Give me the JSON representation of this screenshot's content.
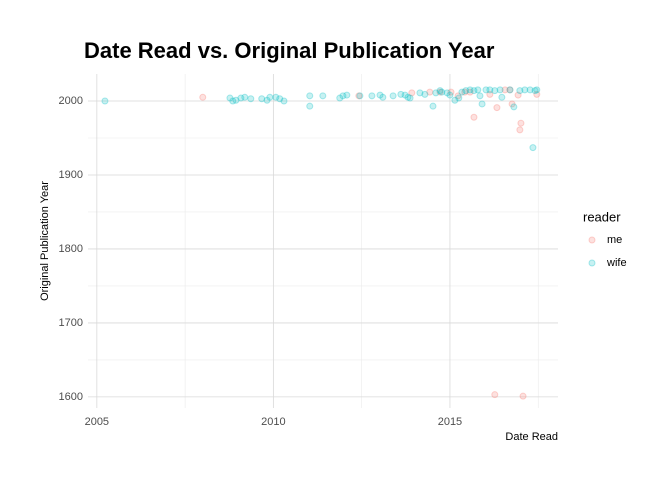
{
  "chart_data": {
    "type": "scatter",
    "title": "Date Read vs. Original Publication Year",
    "x_label": "Date Read",
    "y_label": "Original Publication Year",
    "legend_title": "reader",
    "legend_position": "right",
    "grid": true,
    "opacity": 0.22,
    "xlim": [
      2004.75,
      2018.06
    ],
    "ylim": [
      1585,
      2036.5
    ],
    "xticks": [
      2005,
      2010,
      2015
    ],
    "xminorticks": [
      2007.5,
      2012.5,
      2017.5
    ],
    "yticks": [
      1600,
      1700,
      1800,
      1900,
      2000
    ],
    "yminorticks": [
      1650,
      1750,
      1850,
      1950
    ],
    "series": [
      {
        "name": "me",
        "color": "#F8766D",
        "x": [
          2008.0,
          2012.42,
          2013.92,
          2014.43,
          2014.72,
          2015.03,
          2015.23,
          2015.42,
          2015.57,
          2015.68,
          2016.13,
          2016.33,
          2016.56,
          2016.76,
          2016.93,
          2016.98,
          2017.01,
          2017.46,
          2016.27,
          2017.07,
          2016.7
        ],
        "y": [
          2005,
          2007,
          2011,
          2012,
          2012,
          2012,
          2007,
          2012,
          2012,
          1978,
          2009,
          1991,
          2015,
          1996,
          2008,
          1961,
          1970,
          2009,
          1603,
          1601,
          2015
        ]
      },
      {
        "name": "wife",
        "color": "#00BFC4",
        "x": [
          2005.23,
          2008.77,
          2008.85,
          2008.94,
          2009.08,
          2009.19,
          2009.36,
          2009.67,
          2009.82,
          2009.9,
          2010.07,
          2010.18,
          2010.3,
          2011.03,
          2011.03,
          2011.4,
          2011.88,
          2011.97,
          2012.08,
          2012.45,
          2012.79,
          2013.02,
          2013.1,
          2013.39,
          2013.61,
          2013.73,
          2013.81,
          2013.87,
          2014.15,
          2014.29,
          2014.52,
          2014.6,
          2014.72,
          2014.77,
          2014.92,
          2015.0,
          2015.14,
          2015.25,
          2015.34,
          2015.45,
          2015.57,
          2015.68,
          2015.79,
          2015.85,
          2015.91,
          2016.02,
          2016.13,
          2016.27,
          2016.42,
          2016.47,
          2016.7,
          2016.81,
          2016.98,
          2017.12,
          2017.27,
          2017.41,
          2017.46,
          2017.35
        ],
        "y": [
          2000,
          2004,
          2000,
          2001,
          2004,
          2005,
          2003,
          2003,
          2001,
          2005,
          2005,
          2003,
          2000,
          2007,
          1993,
          2007,
          2004,
          2007,
          2008,
          2007,
          2007,
          2008,
          2005,
          2007,
          2009,
          2008,
          2005,
          2004,
          2011,
          2009,
          1993,
          2011,
          2014,
          2012,
          2011,
          2008,
          2001,
          2004,
          2012,
          2014,
          2015,
          2014,
          2015,
          2007,
          1996,
          2015,
          2015,
          2014,
          2015,
          2005,
          2015,
          1992,
          2014,
          2015,
          2015,
          2014,
          2015,
          1937
        ]
      }
    ]
  }
}
